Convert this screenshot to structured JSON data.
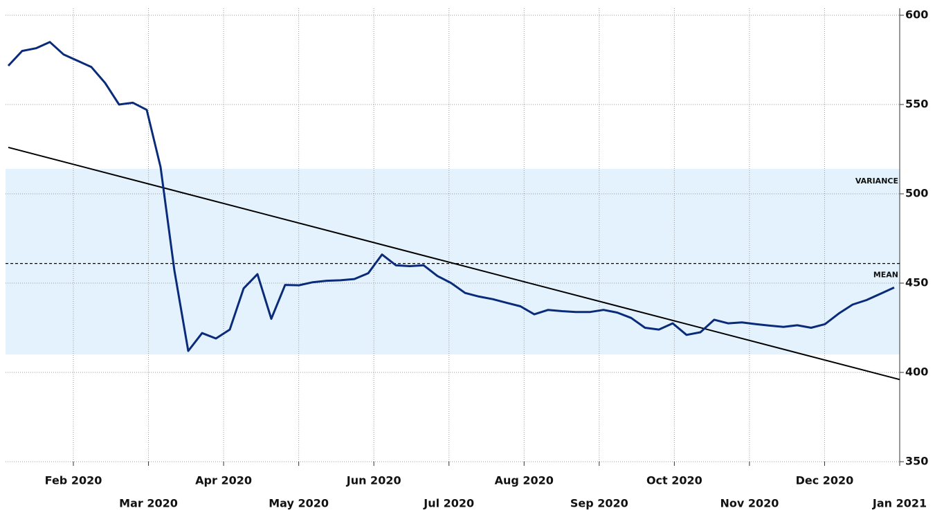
{
  "chart_data": {
    "type": "line",
    "xticks": [
      "Feb 2020",
      "Mar 2020",
      "Apr 2020",
      "May 2020",
      "Jun 2020",
      "Jul 2020",
      "Aug 2020",
      "Sep 2020",
      "Oct 2020",
      "Nov 2020",
      "Dec 2020",
      "Jan 2021"
    ],
    "series": [
      {
        "color": "#0a2a7a",
        "values": [
          571.7,
          580,
          581.5,
          585,
          578,
          574.5,
          571,
          562,
          550,
          551,
          547,
          515,
          457,
          412,
          422,
          419,
          424,
          447,
          455,
          430,
          449,
          448.8,
          450.5,
          451.3,
          451.6,
          452.3,
          455.5,
          466,
          460,
          459.5,
          460,
          454,
          450,
          444.5,
          442.5,
          441,
          439,
          437,
          432.5,
          435,
          434.3,
          433.8,
          433.8,
          435,
          433.5,
          430.5,
          425,
          424,
          427.5,
          421,
          422.5,
          429.5,
          427.5,
          428,
          427,
          426.2,
          425.5,
          426.4,
          425,
          427,
          433,
          438,
          440.5,
          444,
          447.5
        ]
      }
    ],
    "trend_line": {
      "color": "#000000",
      "values": [
        526,
        396
      ]
    },
    "mean": {
      "label": "MEAN",
      "value": 461
    },
    "variance": {
      "label": "VARIANCE",
      "range": [
        410,
        514
      ],
      "color": "#e3f2fc"
    },
    "ylim": [
      350,
      600
    ],
    "yticks": [
      350,
      400,
      450,
      500,
      550,
      600
    ],
    "grid": true
  }
}
